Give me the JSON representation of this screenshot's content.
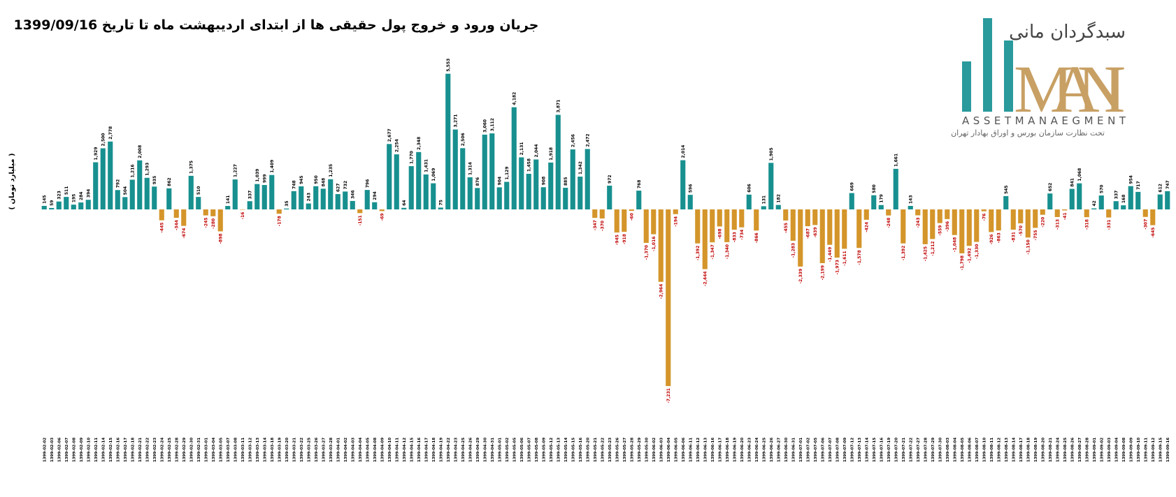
{
  "chart_data": {
    "type": "bar",
    "title": "جریان ورود و خروج پول حقیقی ها از ابتدای اردیبهشت ماه تا تاریخ 1399/09/16",
    "y_label": "( میلیارد تومان )",
    "logo": {
      "brand": "سبدگردان مانی",
      "name": "MANI",
      "subtitle": "ASSETMANAEGMENT",
      "note": "تحت نظارت سازمان بورس و اوراق بهادار تهران"
    },
    "positive_color": "#17908f",
    "negative_color": "#d4952a",
    "ylim": [
      -8000,
      6000
    ],
    "categories": [
      "1399-02-02",
      "1399-02-03",
      "1399-02-06",
      "1399-02-07",
      "1399-02-08",
      "1399-02-09",
      "1399-02-10",
      "1399-02-11",
      "1399-02-14",
      "1399-02-15",
      "1399-02-16",
      "1399-02-17",
      "1399-02-18",
      "1399-02-21",
      "1399-02-22",
      "1399-02-23",
      "1399-02-24",
      "1399-02-25",
      "1399-02-28",
      "1399-02-29",
      "1399-02-30",
      "1399-02-31",
      "1399-03-01",
      "1399-03-04",
      "1399-03-05",
      "1399-03-07",
      "1399-03-08",
      "1399-03-11",
      "1399-03-12",
      "1399-03-13",
      "1399-03-14",
      "1399-03-18",
      "1399-03-19",
      "1399-03-20",
      "1399-03-21",
      "1399-03-22",
      "1399-03-25",
      "1399-03-26",
      "1399-03-27",
      "1399-03-28",
      "1399-04-01",
      "1399-04-02",
      "1399-04-03",
      "1399-04-04",
      "1399-04-05",
      "1399-04-08",
      "1399-04-09",
      "1399-04-10",
      "1399-04-11",
      "1399-04-12",
      "1399-04-15",
      "1399-04-16",
      "1399-04-17",
      "1399-04-18",
      "1399-04-19",
      "1399-04-22",
      "1399-04-23",
      "1399-04-25",
      "1399-04-26",
      "1399-04-29",
      "1399-04-30",
      "1399-04-31",
      "1399-05-01",
      "1399-05-02",
      "1399-05-05",
      "1399-05-06",
      "1399-05-07",
      "1399-05-08",
      "1399-05-09",
      "1399-05-12",
      "1399-05-13",
      "1399-05-14",
      "1399-05-15",
      "1399-05-16",
      "1399-05-20",
      "1399-05-21",
      "1399-05-22",
      "1399-05-23",
      "1399-05-26",
      "1399-05-27",
      "1399-05-28",
      "1399-05-29",
      "1399-05-30",
      "1399-06-02",
      "1399-06-03",
      "1399-06-04",
      "1399-06-05",
      "1399-06-06",
      "1399-06-11",
      "1399-06-12",
      "1399-06-13",
      "1399-06-16",
      "1399-06-17",
      "1399-06-18",
      "1399-06-19",
      "1399-06-20",
      "1399-06-23",
      "1399-06-24",
      "1399-06-25",
      "1399-06-26",
      "1399-06-27",
      "1399-06-30",
      "1399-06-31",
      "1399-07-01",
      "1399-07-02",
      "1399-07-05",
      "1399-07-06",
      "1399-07-07",
      "1399-07-08",
      "1399-07-09",
      "1399-07-12",
      "1399-07-13",
      "1399-07-14",
      "1399-07-15",
      "1399-07-16",
      "1399-07-19",
      "1399-07-20",
      "1399-07-21",
      "1399-07-22",
      "1399-07-27",
      "1399-07-28",
      "1399-07-29",
      "1399-07-30",
      "1399-08-03",
      "1399-08-04",
      "1399-08-05",
      "1399-08-06",
      "1399-08-07",
      "1399-08-10",
      "1399-08-11",
      "1399-08-12",
      "1399-08-13",
      "1399-08-14",
      "1399-08-17",
      "1399-08-18",
      "1399-08-19",
      "1399-08-20",
      "1399-08-21",
      "1399-08-24",
      "1399-08-25",
      "1399-08-26",
      "1399-08-27",
      "1399-08-28",
      "1399-09-01",
      "1399-09-02",
      "1399-09-03",
      "1399-09-04",
      "1399-09-08",
      "1399-09-09",
      "1399-09-10",
      "1399-09-11",
      "1399-09-12",
      "1399-09-15",
      "1399-09-16"
    ],
    "values": [
      145,
      59,
      323,
      511,
      195,
      284,
      394,
      1929,
      2500,
      2778,
      792,
      504,
      1216,
      2008,
      1293,
      935,
      -445,
      862,
      -344,
      -674,
      1375,
      510,
      -245,
      -280,
      -898,
      141,
      1227,
      -16,
      337,
      1039,
      999,
      1409,
      -178,
      35,
      748,
      945,
      243,
      950,
      848,
      1235,
      627,
      732,
      346,
      -151,
      796,
      294,
      -69,
      2677,
      2254,
      64,
      1770,
      2348,
      1431,
      1069,
      75,
      5553,
      3271,
      2506,
      1314,
      876,
      3060,
      3112,
      904,
      1129,
      4182,
      2131,
      1458,
      2044,
      908,
      1918,
      3871,
      885,
      2456,
      1342,
      2472,
      -347,
      -370,
      972,
      -945,
      -918,
      -60,
      768,
      -1370,
      -1016,
      -2964,
      -7231,
      -194,
      2014,
      596,
      -1392,
      -2444,
      -1347,
      -698,
      -1340,
      -833,
      -734,
      606,
      -866,
      131,
      1905,
      182,
      -455,
      -1283,
      -2339,
      -687,
      -639,
      -2199,
      -1449,
      -1973,
      -1611,
      669,
      -1578,
      -424,
      580,
      179,
      -248,
      1661,
      -1392,
      143,
      -243,
      -1425,
      -1212,
      -559,
      -396,
      -1048,
      -1798,
      -1492,
      -1330,
      -76,
      -926,
      -863,
      545,
      -831,
      -570,
      -1150,
      -755,
      -220,
      652,
      -313,
      -41,
      841,
      1068,
      -318,
      42,
      570,
      -331,
      337,
      168,
      954,
      717,
      -307,
      -645,
      612,
      747
    ],
    "value_labels": [
      "145",
      "59",
      "323",
      "511",
      "195",
      "284",
      "394",
      "1,929",
      "2,500",
      "2,778",
      "792",
      "504",
      "1,216",
      "2,008",
      "1,293",
      "935",
      "-445",
      "862",
      "-344",
      "-674",
      "1,375",
      "510",
      "-245",
      "-280",
      "-898",
      "141",
      "1,227",
      "-16",
      "337",
      "1,039",
      "999",
      "1,409",
      "-178",
      "35",
      "748",
      "945",
      "243",
      "950",
      "848",
      "1,235",
      "627",
      "732",
      "346",
      "-151",
      "796",
      "294",
      "-69",
      "2,677",
      "2,254",
      "64",
      "1,770",
      "2,348",
      "1,431",
      "1,069",
      "75",
      "5,553",
      "3,271",
      "2,506",
      "1,314",
      "876",
      "3,060",
      "3,112",
      "904",
      "1,129",
      "4,182",
      "2,131",
      "1,458",
      "2,044",
      "908",
      "1,918",
      "3,871",
      "885",
      "2,456",
      "1,342",
      "2,472",
      "-347",
      "-370",
      "972",
      "-945",
      "-918",
      "-60",
      "768",
      "-1,370",
      "-1,016",
      "-2,964",
      "-7,231",
      "-194",
      "2,014",
      "596",
      "-1,392",
      "-2,444",
      "-1,347",
      "-698",
      "-1,340",
      "-833",
      "-734",
      "606",
      "-866",
      "131",
      "1,905",
      "182",
      "-455",
      "-1,283",
      "-2,339",
      "-687",
      "-639",
      "-2,199",
      "-1,449",
      "-1,973",
      "-1,611",
      "669",
      "-1,578",
      "-424",
      "580",
      "179",
      "-248",
      "1,661",
      "-1,392",
      "143",
      "-243",
      "-1,425",
      "-1,212",
      "-559",
      "-396",
      "-1,048",
      "-1,798",
      "-1,492",
      "-1,330",
      "-76",
      "-926",
      "-863",
      "545",
      "-831",
      "-570",
      "-1,150",
      "-755",
      "-220",
      "652",
      "-313",
      "-41",
      "841",
      "1,068",
      "-318",
      "42",
      "570",
      "-331",
      "337",
      "168",
      "954",
      "717",
      "-307",
      "-645",
      "612",
      "747"
    ]
  }
}
